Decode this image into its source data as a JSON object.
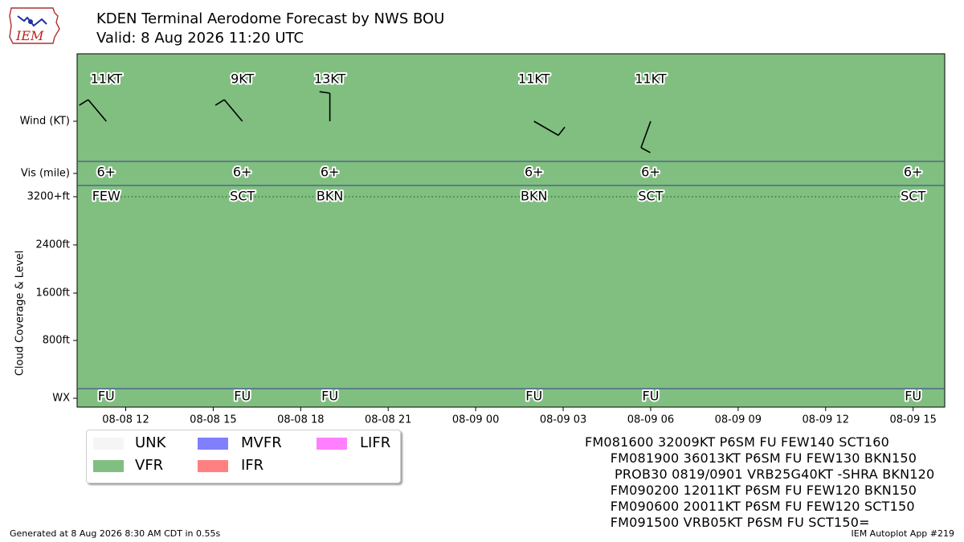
{
  "header": {
    "title": "KDEN Terminal Aerodome Forecast by NWS BOU",
    "subtitle": "Valid: 8 Aug 2026 11:20 UTC",
    "logo_text": "IEM"
  },
  "chart_data": {
    "type": "timeline",
    "x_axis": {
      "start": "2026-08-08 10:20",
      "end": "2026-08-09 16:05",
      "ticks": [
        "08-08 12",
        "08-08 15",
        "08-08 18",
        "08-08 21",
        "08-09 00",
        "08-09 03",
        "08-09 06",
        "08-09 09",
        "08-09 12",
        "08-09 15"
      ],
      "tick_times": [
        "2026-08-08 12:00",
        "2026-08-08 15:00",
        "2026-08-08 18:00",
        "2026-08-08 21:00",
        "2026-08-09 00:00",
        "2026-08-09 03:00",
        "2026-08-09 06:00",
        "2026-08-09 09:00",
        "2026-08-09 12:00",
        "2026-08-09 15:00"
      ]
    },
    "y_axis": {
      "label": "Cloud Coverage & Level",
      "row_labels": [
        "Wind (KT)",
        "Vis (mile)",
        "3200+ft",
        "2400ft",
        "1600ft",
        "800ft",
        "WX"
      ]
    },
    "background_category": "VFR",
    "legend": [
      {
        "label": "UNK",
        "color": "#f5f5f5"
      },
      {
        "label": "VFR",
        "color": "#80bf80"
      },
      {
        "label": "MVFR",
        "color": "#8080ff"
      },
      {
        "label": "IFR",
        "color": "#ff8080"
      },
      {
        "label": "LIFR",
        "color": "#ff80ff"
      }
    ],
    "forecasts": [
      {
        "time": "2026-08-08 11:20",
        "wind_dir": 320,
        "wind_kt": 11,
        "wind_label": "11KT",
        "vis": "6+",
        "cloud": "FEW",
        "wx": "FU"
      },
      {
        "time": "2026-08-08 16:00",
        "wind_dir": 320,
        "wind_kt": 9,
        "wind_label": "9KT",
        "vis": "6+",
        "cloud": "SCT",
        "wx": "FU"
      },
      {
        "time": "2026-08-08 19:00",
        "wind_dir": 360,
        "wind_kt": 13,
        "wind_label": "13KT",
        "vis": "6+",
        "cloud": "BKN",
        "wx": "FU"
      },
      {
        "time": "2026-08-09 02:00",
        "wind_dir": 120,
        "wind_kt": 11,
        "wind_label": "11KT",
        "vis": "6+",
        "cloud": "BKN",
        "wx": "FU"
      },
      {
        "time": "2026-08-09 06:00",
        "wind_dir": 200,
        "wind_kt": 11,
        "wind_label": "11KT",
        "vis": "6+",
        "cloud": "SCT",
        "wx": "FU"
      },
      {
        "time": "2026-08-09 15:00",
        "wind_dir": null,
        "wind_kt": 5,
        "wind_label": "",
        "vis": "6+",
        "cloud": "SCT",
        "wx": "FU"
      }
    ]
  },
  "taf_text": [
    "FM081600 32009KT P6SM FU FEW140 SCT160",
    "      FM081900 36013KT P6SM FU FEW130 BKN150",
    "       PROB30 0819/0901 VRB25G40KT -SHRA BKN120",
    "      FM090200 12011KT P6SM FU FEW120 BKN150",
    "      FM090600 20011KT P6SM FU FEW120 SCT150",
    "      FM091500 VRB05KT P6SM FU SCT150="
  ],
  "footer": {
    "generated": "Generated at 8 Aug 2026 8:30 AM CDT in 0.55s",
    "app": "IEM Autoplot App #219"
  }
}
